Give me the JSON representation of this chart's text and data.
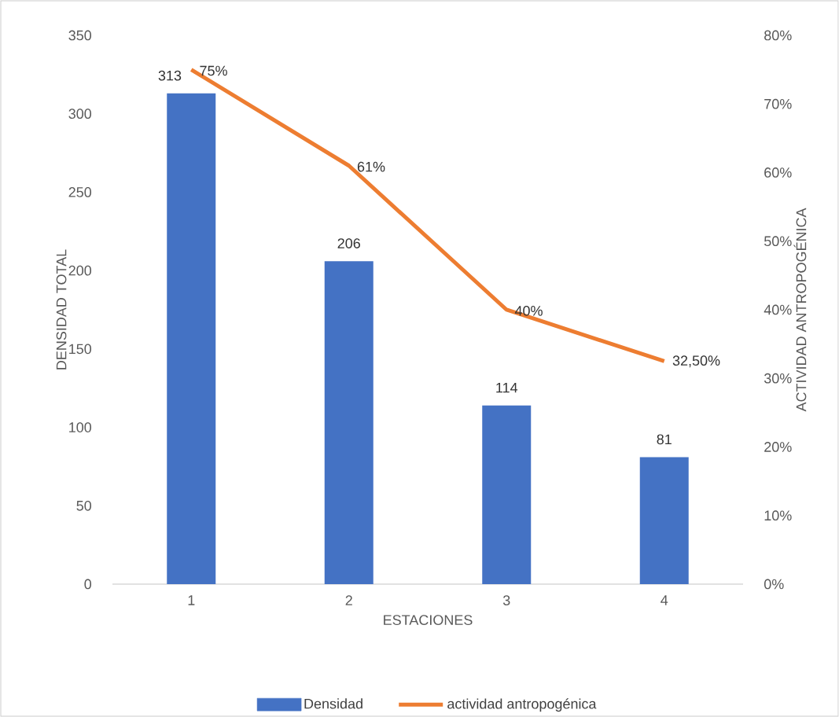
{
  "chart_data": {
    "type": "bar",
    "categories": [
      "1",
      "2",
      "3",
      "4"
    ],
    "xlabel": "ESTACIONES",
    "ylabel": "DENSIDAD TOTAL",
    "y2label": "ACTIVIDAD ANTROPOGÉNICA",
    "ylim": [
      0,
      350
    ],
    "yticks": [
      0,
      50,
      100,
      150,
      200,
      250,
      300,
      350
    ],
    "y2lim": [
      0,
      80
    ],
    "y2ticks": [
      {
        "value": 0,
        "label": "0%"
      },
      {
        "value": 10,
        "label": "10%"
      },
      {
        "value": 20,
        "label": "20%"
      },
      {
        "value": 30,
        "label": "30%"
      },
      {
        "value": 40,
        "label": "40%"
      },
      {
        "value": 50,
        "label": "50%"
      },
      {
        "value": 60,
        "label": "60%"
      },
      {
        "value": 70,
        "label": "70%"
      },
      {
        "value": 80,
        "label": "80%"
      }
    ],
    "legend": "bottom",
    "series": [
      {
        "name": "Densidad",
        "color": "#4472c4",
        "values": [
          313,
          206,
          114,
          81
        ],
        "value_labels": [
          "313",
          "206",
          "114",
          "81"
        ]
      },
      {
        "name": "actividad antropogénica",
        "type": "line",
        "axis": "y2",
        "color": "#ed7d31",
        "values": [
          75,
          61,
          40,
          32.5
        ],
        "value_labels": [
          "75%",
          "61%",
          "40%",
          "32,50%"
        ]
      }
    ]
  }
}
